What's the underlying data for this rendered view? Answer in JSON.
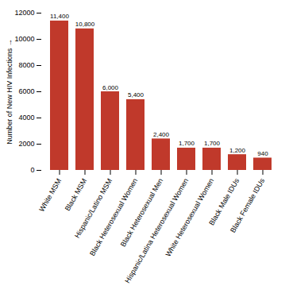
{
  "chart_data": {
    "type": "bar",
    "categories": [
      "White MSM",
      "Black MSM",
      "Hispanic/Latino MSM",
      "Black Heterosexual Women",
      "Black Heterosexual Men",
      "Hispanic/Latina Heterosexual Women",
      "White Heterosexual Women",
      "Black Male IDUs",
      "Black Female IDUs"
    ],
    "values": [
      11400,
      10800,
      6000,
      5400,
      2400,
      1700,
      1700,
      1200,
      940
    ],
    "value_labels": [
      "11,400",
      "10,800",
      "6,000",
      "5,400",
      "2,400",
      "1,700",
      "1,700",
      "1,200",
      "940"
    ],
    "color": "#C0392B",
    "ylabel": "Number of New HIV Infections",
    "ylim": [
      0,
      12000
    ],
    "yticks": [
      0,
      2000,
      4000,
      6000,
      8000,
      10000,
      12000
    ],
    "data_labels": true,
    "grid": false
  }
}
